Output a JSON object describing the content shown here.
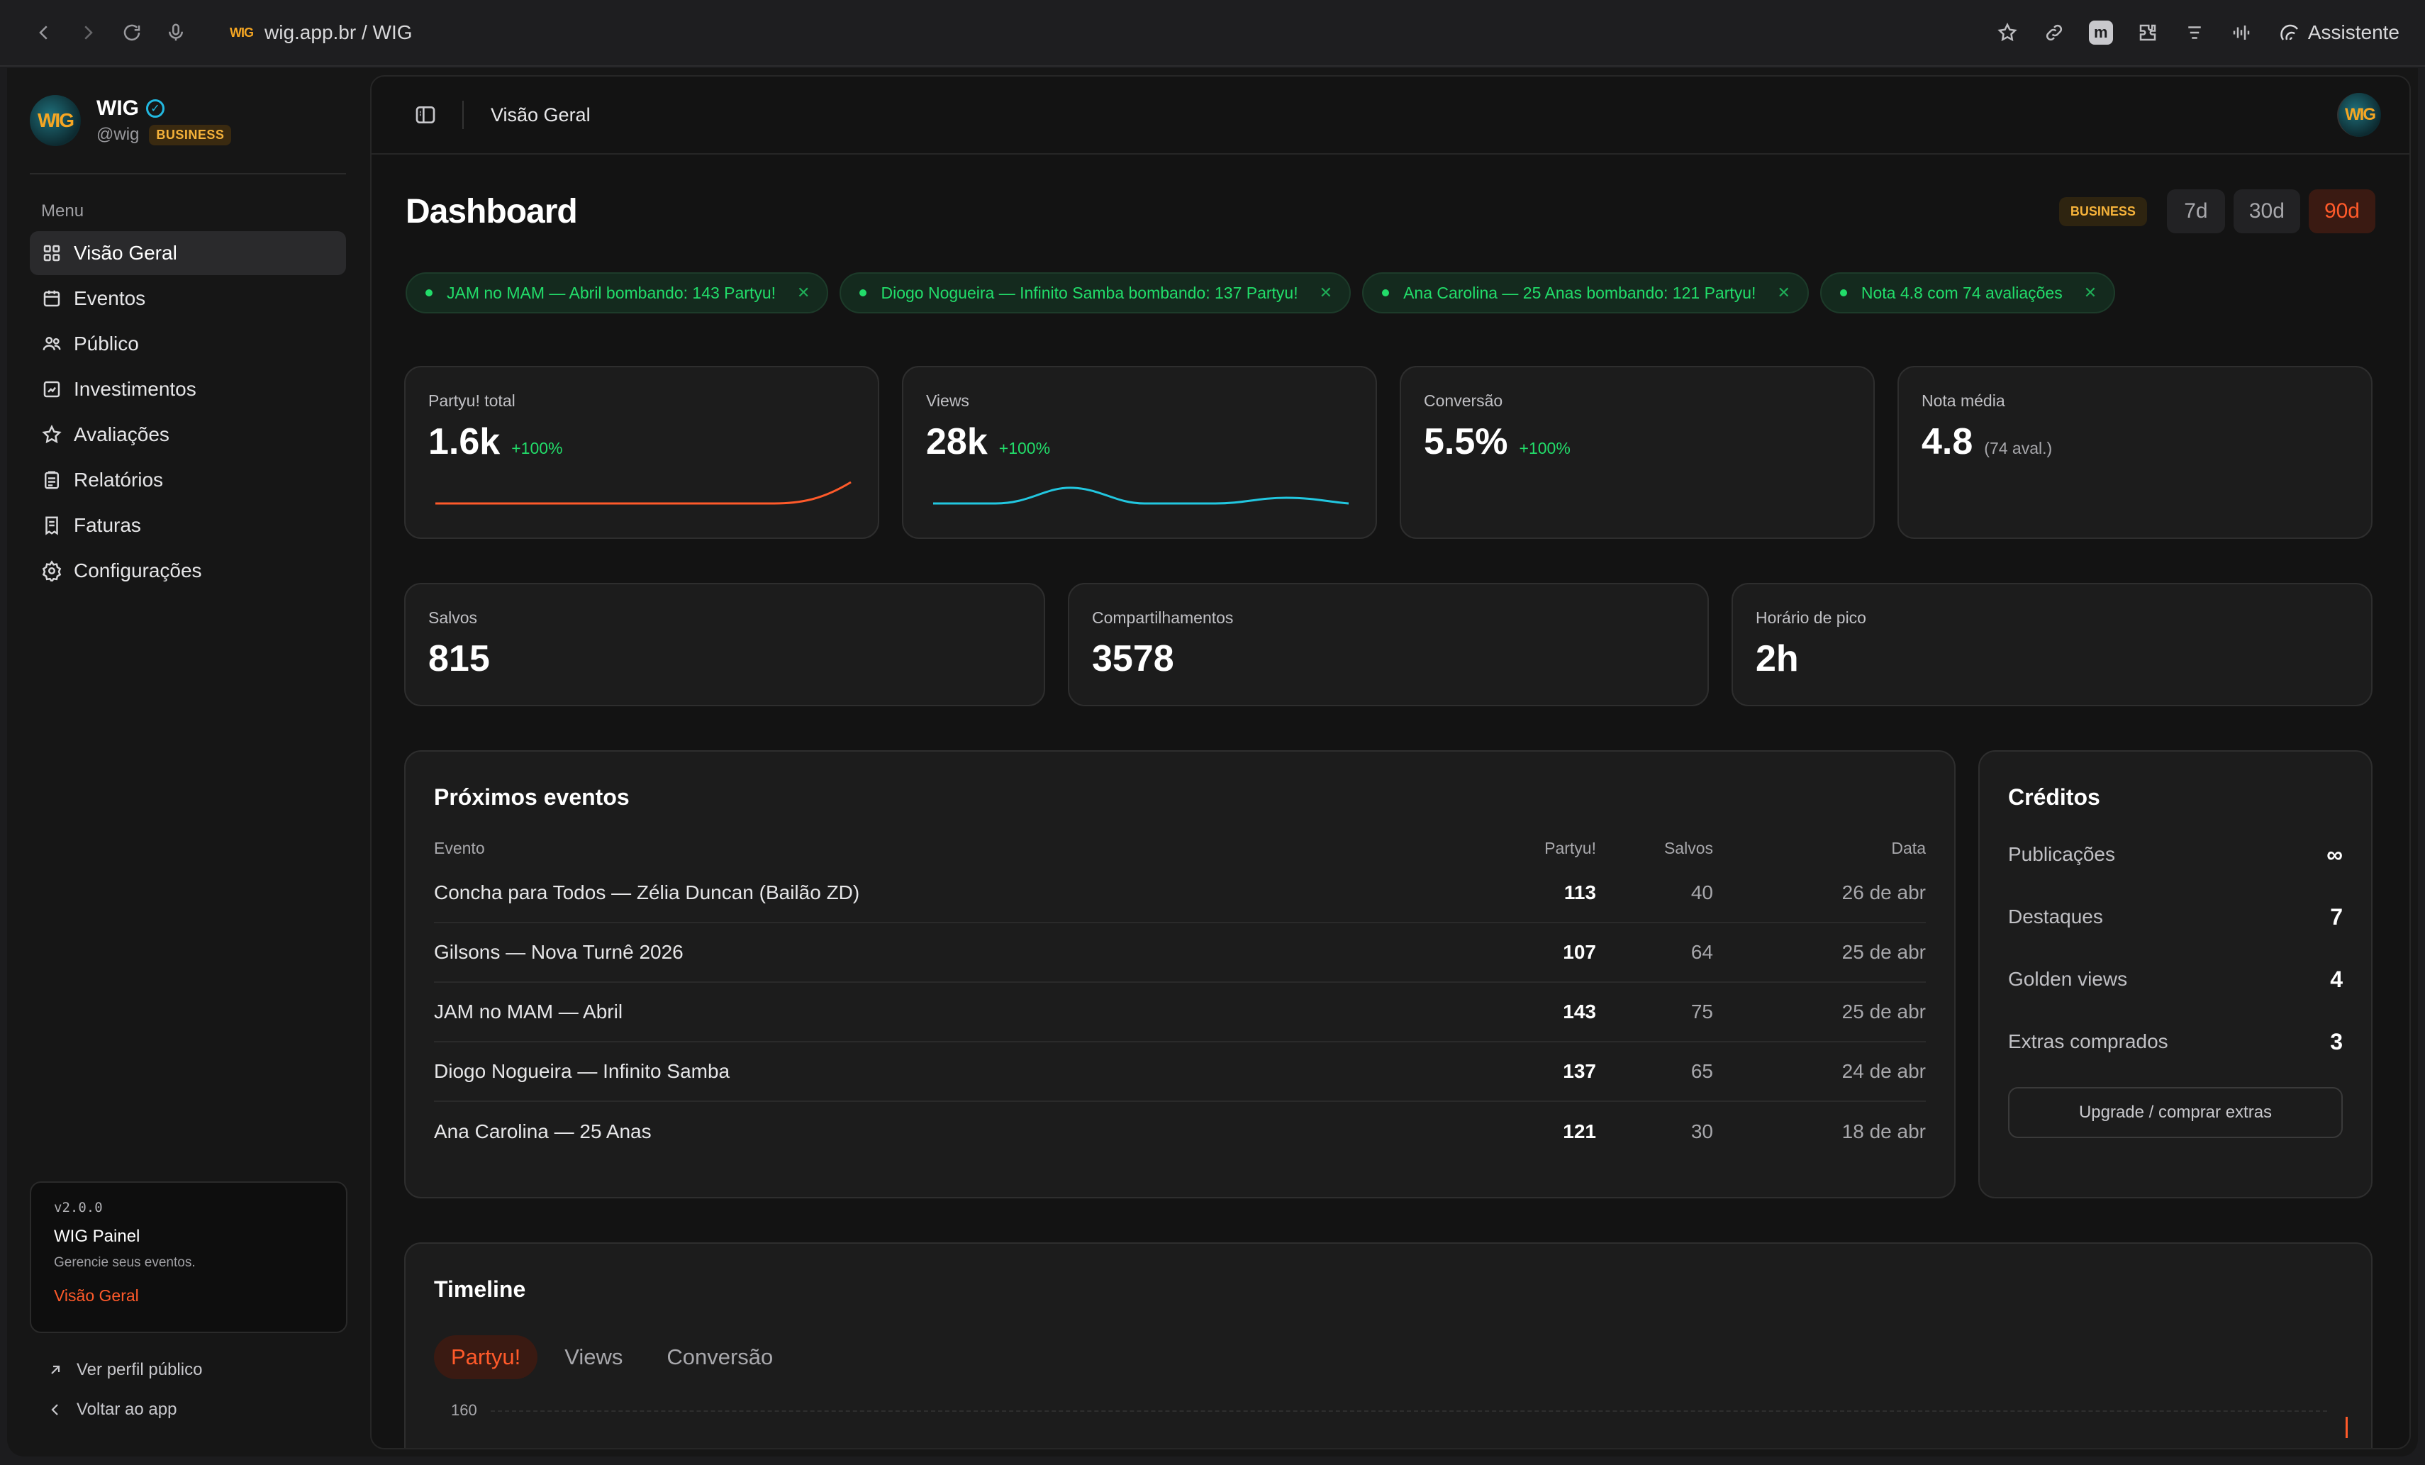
{
  "browser": {
    "url": "wig.app.br / WIG",
    "url_logo": "WIG",
    "assistant_label": "Assistente",
    "extension_letter": "m"
  },
  "sidebar": {
    "brand_logo": "WIG",
    "brand_name": "WIG",
    "handle": "@wig",
    "plan_badge": "BUSINESS",
    "menu_label": "Menu",
    "items": [
      {
        "label": "Visão Geral",
        "icon": "grid-icon"
      },
      {
        "label": "Eventos",
        "icon": "calendar-icon"
      },
      {
        "label": "Público",
        "icon": "users-icon"
      },
      {
        "label": "Investimentos",
        "icon": "chart-icon"
      },
      {
        "label": "Avaliações",
        "icon": "star-icon"
      },
      {
        "label": "Relatórios",
        "icon": "clipboard-icon"
      },
      {
        "label": "Faturas",
        "icon": "receipt-icon"
      },
      {
        "label": "Configurações",
        "icon": "gear-icon"
      }
    ],
    "info": {
      "version": "v2.0.0",
      "title": "WIG Painel",
      "description": "Gerencie seus eventos.",
      "link": "Visão Geral"
    },
    "footer": {
      "public_profile": "Ver perfil público",
      "back": "Voltar ao app"
    }
  },
  "topbar": {
    "title": "Visão Geral",
    "avatar": "WIG"
  },
  "dashboard": {
    "title": "Dashboard",
    "plan_badge": "BUSINESS",
    "ranges": [
      "7d",
      "30d",
      "90d"
    ],
    "active_range": "90d"
  },
  "alerts": [
    "JAM no MAM — Abril bombando: 143 Partyu!",
    "Diogo Nogueira — Infinito Samba bombando: 137 Partyu!",
    "Ana Carolina — 25 Anas bombando: 121 Partyu!",
    "Nota 4.8 com 74 avaliações"
  ],
  "stats": [
    {
      "label": "Partyu! total",
      "value": "1.6k",
      "delta": "+100%"
    },
    {
      "label": "Views",
      "value": "28k",
      "delta": "+100%"
    },
    {
      "label": "Conversão",
      "value": "5.5%",
      "delta": "+100%"
    },
    {
      "label": "Nota média",
      "value": "4.8",
      "note": "(74 aval.)"
    }
  ],
  "stats2": [
    {
      "label": "Salvos",
      "value": "815"
    },
    {
      "label": "Compartilhamentos",
      "value": "3578"
    },
    {
      "label": "Horário de pico",
      "value": "2h"
    }
  ],
  "events": {
    "title": "Próximos eventos",
    "columns": [
      "Evento",
      "Partyu!",
      "Salvos",
      "Data"
    ],
    "rows": [
      {
        "name": "Concha para Todos — Zélia Duncan (Bailão ZD)",
        "partyu": "113",
        "salvos": "40",
        "data": "26 de abr"
      },
      {
        "name": "Gilsons — Nova Turnê 2026",
        "partyu": "107",
        "salvos": "64",
        "data": "25 de abr"
      },
      {
        "name": "JAM no MAM — Abril",
        "partyu": "143",
        "salvos": "75",
        "data": "25 de abr"
      },
      {
        "name": "Diogo Nogueira — Infinito Samba",
        "partyu": "137",
        "salvos": "65",
        "data": "24 de abr"
      },
      {
        "name": "Ana Carolina — 25 Anas",
        "partyu": "121",
        "salvos": "30",
        "data": "18 de abr"
      }
    ]
  },
  "credits": {
    "title": "Créditos",
    "rows": [
      {
        "label": "Publicações",
        "value": "∞"
      },
      {
        "label": "Destaques",
        "value": "7"
      },
      {
        "label": "Golden views",
        "value": "4"
      },
      {
        "label": "Extras comprados",
        "value": "3"
      }
    ],
    "button": "Upgrade / comprar extras"
  },
  "timeline": {
    "title": "Timeline",
    "tabs": [
      "Partyu!",
      "Views",
      "Conversão"
    ],
    "active_tab": "Partyu!",
    "y_max_label": "160"
  },
  "colors": {
    "accent": "#ff5a2a",
    "success": "#22dd6a",
    "sparkline_views": "#22c7e0"
  }
}
